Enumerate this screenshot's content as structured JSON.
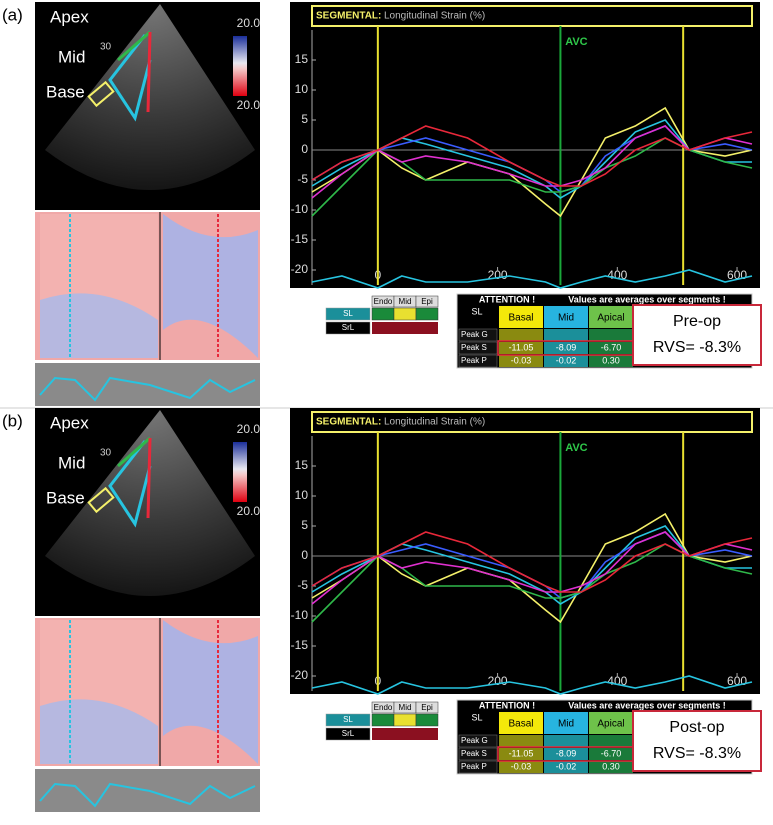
{
  "panels": [
    {
      "label": "(a)",
      "echo": {
        "labels": [
          "Apex",
          "Mid",
          "Base"
        ],
        "scale_top": "20.0",
        "scale_bottom": "20.0",
        "depth": "30"
      },
      "chart": {
        "type": "line",
        "title": "SEGMENTAL:",
        "subtitle": "Longitudinal Strain (%)",
        "marker": "AVC",
        "event_lines": [
          0,
          305,
          510
        ],
        "xlim": [
          -110,
          625
        ],
        "ylim": [
          -22.5,
          20
        ],
        "xticks": [
          0,
          200,
          400,
          600
        ],
        "yticks": [
          15,
          10,
          5,
          0,
          -5,
          -10,
          -15,
          -20
        ],
        "x": [
          -110,
          -60,
          0,
          40,
          80,
          150,
          220,
          280,
          305,
          340,
          380,
          430,
          480,
          520,
          580,
          625
        ],
        "series": [
          {
            "color": "#f4f06a",
            "values": [
              -7,
              -4,
              0,
              -3,
              -5,
              -2,
              -4,
              -9,
              -11,
              -5,
              2,
              4,
              7,
              0,
              -1,
              0
            ]
          },
          {
            "color": "#27c4e0",
            "values": [
              -6,
              -3,
              0,
              2,
              1,
              -1,
              -3,
              -6,
              -8,
              -6,
              -2,
              3,
              5,
              0,
              -2,
              -2
            ]
          },
          {
            "color": "#3a5cff",
            "values": [
              -5,
              -2,
              0,
              1,
              2,
              0,
              -2,
              -5,
              -7,
              -6,
              -1,
              2,
              4,
              0,
              1,
              0
            ]
          },
          {
            "color": "#2fb84a",
            "values": [
              -11,
              -6,
              0,
              -2,
              -5,
              -5,
              -5,
              -7,
              -7,
              -6,
              -3,
              -1,
              2,
              0,
              -2,
              -3
            ]
          },
          {
            "color": "#e030d0",
            "values": [
              -8,
              -4,
              0,
              -2,
              -1,
              -2,
              -4,
              -6,
              -6,
              -5,
              -3,
              2,
              4,
              0,
              2,
              1
            ]
          },
          {
            "color": "#e8283a",
            "values": [
              -5,
              -2,
              0,
              2,
              4,
              2,
              -2,
              -5,
              -6,
              -6,
              -4,
              0,
              2,
              0,
              2,
              3
            ]
          },
          {
            "color": "#27c4e0",
            "values": [
              -22,
              -21,
              -23,
              -21,
              -22,
              -22,
              -21,
              -22,
              -23,
              -22,
              -21,
              -22,
              -21,
              -20,
              -22,
              -21
            ]
          }
        ]
      },
      "controls": {
        "headers": [
          "Endo",
          "Mid",
          "Epi"
        ],
        "rows": [
          "SL",
          "SrL"
        ]
      },
      "table": {
        "notice": "ATTENTION !",
        "note": "Values are averages over segments !",
        "corner": "SL",
        "columns": [
          "Basal",
          "Mid",
          "Apical"
        ],
        "rows": [
          {
            "name": "Peak G",
            "values": [
              "",
              "",
              ""
            ]
          },
          {
            "name": "Peak S",
            "values": [
              "-11.05",
              "-8.09",
              "-6.70"
            ]
          },
          {
            "name": "Peak P",
            "values": [
              "-0.03",
              "-0.02",
              "0.30"
            ]
          }
        ]
      },
      "result": {
        "title": "Pre-op",
        "value": "RVS= -8.3%"
      }
    },
    {
      "label": "(b)",
      "echo": {
        "labels": [
          "Apex",
          "Mid",
          "Base"
        ],
        "scale_top": "20.0",
        "scale_bottom": "20.0",
        "depth": "30"
      },
      "chart": {
        "type": "line",
        "title": "SEGMENTAL:",
        "subtitle": "Longitudinal Strain (%)",
        "marker": "AVC",
        "event_lines": [
          0,
          305,
          510
        ],
        "xlim": [
          -110,
          625
        ],
        "ylim": [
          -22.5,
          20
        ],
        "xticks": [
          0,
          200,
          400,
          600
        ],
        "yticks": [
          15,
          10,
          5,
          0,
          -5,
          -10,
          -15,
          -20
        ],
        "x": [
          -110,
          -60,
          0,
          40,
          80,
          150,
          220,
          280,
          305,
          340,
          380,
          430,
          480,
          520,
          580,
          625
        ],
        "series": [
          {
            "color": "#f4f06a",
            "values": [
              -7,
              -4,
              0,
              -3,
              -5,
              -2,
              -4,
              -9,
              -11,
              -5,
              2,
              4,
              7,
              0,
              -1,
              0
            ]
          },
          {
            "color": "#27c4e0",
            "values": [
              -6,
              -3,
              0,
              2,
              1,
              -1,
              -3,
              -6,
              -8,
              -6,
              -2,
              3,
              5,
              0,
              -2,
              -2
            ]
          },
          {
            "color": "#3a5cff",
            "values": [
              -5,
              -2,
              0,
              1,
              2,
              0,
              -2,
              -5,
              -7,
              -6,
              -1,
              2,
              4,
              0,
              1,
              0
            ]
          },
          {
            "color": "#2fb84a",
            "values": [
              -11,
              -6,
              0,
              -2,
              -5,
              -5,
              -5,
              -7,
              -7,
              -6,
              -3,
              -1,
              2,
              0,
              -2,
              -3
            ]
          },
          {
            "color": "#e030d0",
            "values": [
              -8,
              -4,
              0,
              -2,
              -1,
              -2,
              -4,
              -6,
              -6,
              -5,
              -3,
              2,
              4,
              0,
              2,
              1
            ]
          },
          {
            "color": "#e8283a",
            "values": [
              -5,
              -2,
              0,
              2,
              4,
              2,
              -2,
              -5,
              -6,
              -6,
              -4,
              0,
              2,
              0,
              2,
              3
            ]
          },
          {
            "color": "#27c4e0",
            "values": [
              -22,
              -21,
              -23,
              -21,
              -22,
              -22,
              -21,
              -22,
              -23,
              -22,
              -21,
              -22,
              -21,
              -20,
              -22,
              -21
            ]
          }
        ]
      },
      "controls": {
        "headers": [
          "Endo",
          "Mid",
          "Epi"
        ],
        "rows": [
          "SL",
          "SrL"
        ]
      },
      "table": {
        "notice": "ATTENTION !",
        "note": "Values are averages over segments !",
        "corner": "SL",
        "columns": [
          "Basal",
          "Mid",
          "Apical"
        ],
        "rows": [
          {
            "name": "Peak G",
            "values": [
              "",
              "",
              ""
            ]
          },
          {
            "name": "Peak S",
            "values": [
              "-11.05",
              "-8.09",
              "-6.70"
            ]
          },
          {
            "name": "Peak P",
            "values": [
              "-0.03",
              "-0.02",
              "0.30"
            ]
          }
        ]
      },
      "result": {
        "title": "Post-op",
        "value": "RVS= -8.3%"
      }
    }
  ]
}
